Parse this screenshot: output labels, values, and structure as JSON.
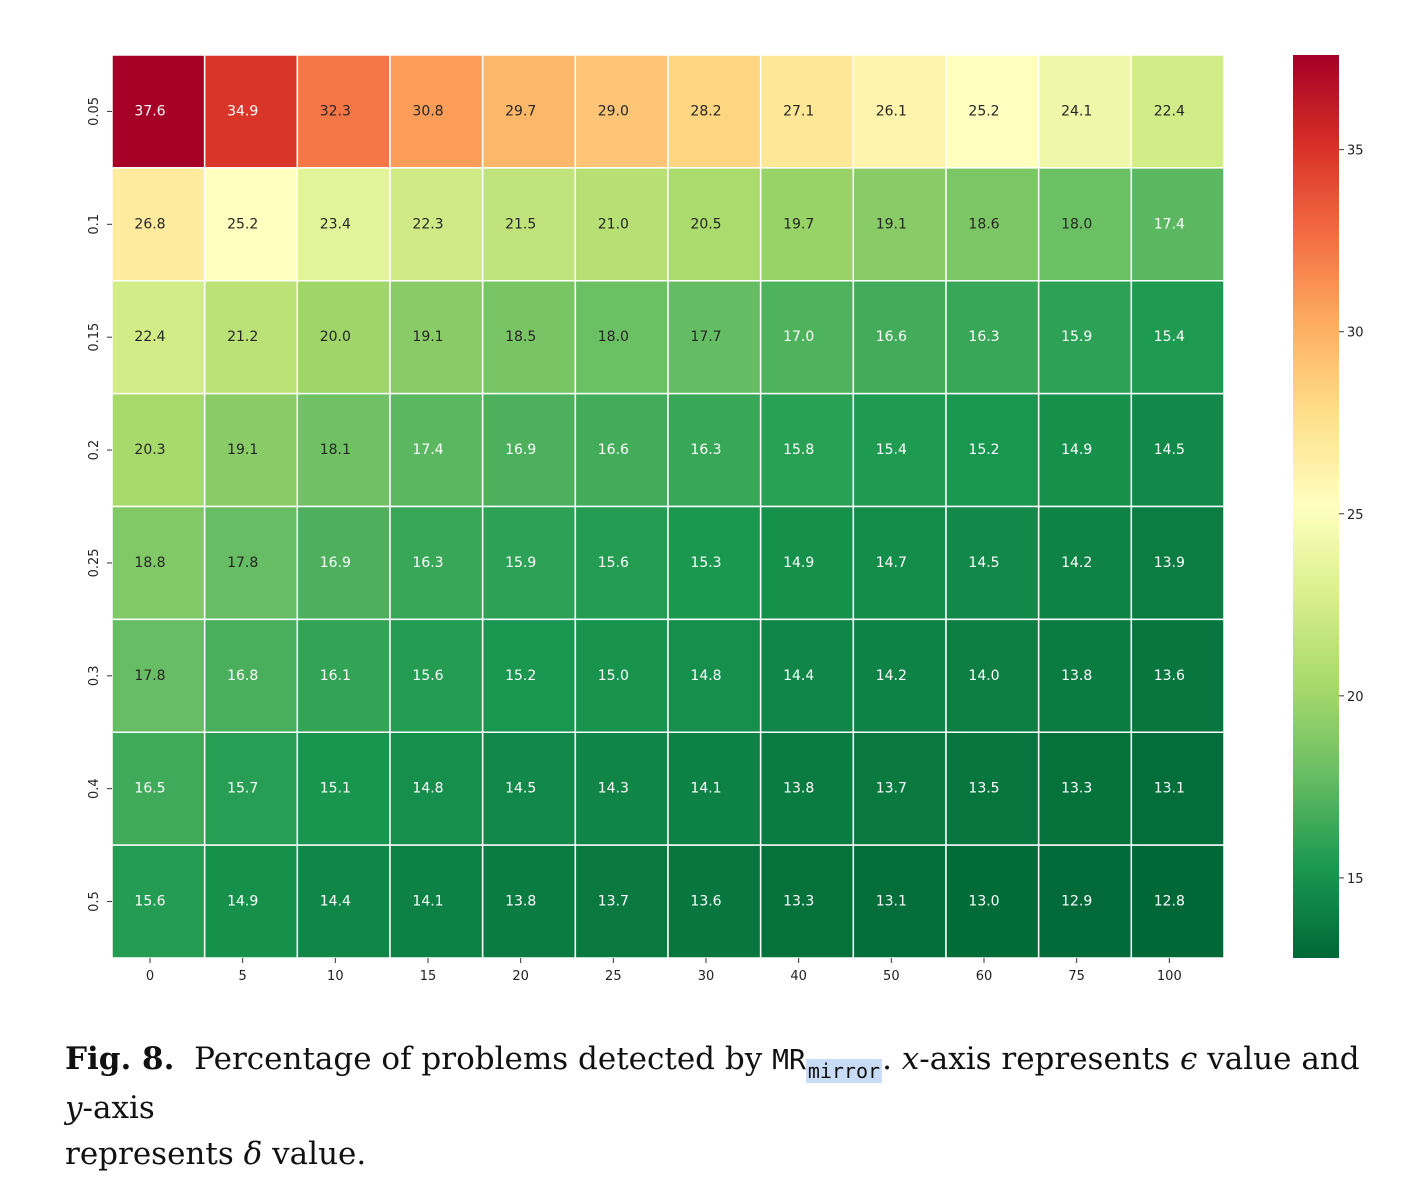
{
  "chart_data": {
    "type": "heatmap",
    "x_ticks": [
      "0",
      "5",
      "10",
      "15",
      "20",
      "25",
      "30",
      "40",
      "50",
      "60",
      "75",
      "100"
    ],
    "y_ticks": [
      "0.05",
      "0.1",
      "0.15",
      "0.2",
      "0.25",
      "0.3",
      "0.4",
      "0.5"
    ],
    "values": [
      [
        37.6,
        34.9,
        32.3,
        30.8,
        29.7,
        29.0,
        28.2,
        27.1,
        26.1,
        25.2,
        24.1,
        22.4
      ],
      [
        26.8,
        25.2,
        23.4,
        22.3,
        21.5,
        21.0,
        20.5,
        19.7,
        19.1,
        18.6,
        18.0,
        17.4
      ],
      [
        22.4,
        21.2,
        20.0,
        19.1,
        18.5,
        18.0,
        17.7,
        17.0,
        16.6,
        16.3,
        15.9,
        15.4
      ],
      [
        20.3,
        19.1,
        18.1,
        17.4,
        16.9,
        16.6,
        16.3,
        15.8,
        15.4,
        15.2,
        14.9,
        14.5
      ],
      [
        18.8,
        17.8,
        16.9,
        16.3,
        15.9,
        15.6,
        15.3,
        14.9,
        14.7,
        14.5,
        14.2,
        13.9
      ],
      [
        17.8,
        16.8,
        16.1,
        15.6,
        15.2,
        15.0,
        14.8,
        14.4,
        14.2,
        14.0,
        13.8,
        13.6
      ],
      [
        16.5,
        15.7,
        15.1,
        14.8,
        14.5,
        14.3,
        14.1,
        13.8,
        13.7,
        13.5,
        13.3,
        13.1
      ],
      [
        15.6,
        14.9,
        14.4,
        14.1,
        13.8,
        13.7,
        13.6,
        13.3,
        13.1,
        13.0,
        12.9,
        12.8
      ]
    ],
    "colormap": "RdYlGn_r",
    "color_range": [
      12.8,
      37.6
    ],
    "colorbar_ticks": [
      "15",
      "20",
      "25",
      "30",
      "35"
    ],
    "colorbar_tick_values": [
      15,
      20,
      25,
      30,
      35
    ]
  },
  "caption": {
    "label": "Fig. 8.",
    "text_before": "Percentage of problems detected by",
    "mr": "MR",
    "mr_sub": "mirror",
    "text_after": ".",
    "x_var": "x",
    "x_rest": "-axis represents",
    "epsilon": "ϵ",
    "mid": "value and",
    "y_var": "y",
    "y_rest": "-axis",
    "line2": "represents",
    "delta": "δ",
    "end": "value."
  }
}
